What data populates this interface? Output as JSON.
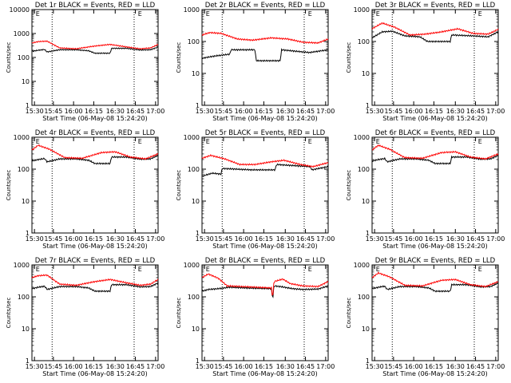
{
  "chart_data": [
    {
      "type": "line",
      "title": "Det 1r BLACK = Events, RED = LLD",
      "xlabel": "Start Time (06-May-08 15:24:20)",
      "ylabel": "Counts/sec",
      "yscale": "log",
      "ylim": [
        1,
        10000
      ],
      "x_ticks": [
        "15:30",
        "15:45",
        "16:00",
        "16:15",
        "16:30",
        "16:45",
        "17:00"
      ],
      "y_ticks": [
        "1",
        "10",
        "100",
        "1000",
        "10000"
      ],
      "markers": [
        "E",
        "E"
      ],
      "series": [
        {
          "color": "#000000",
          "shape": "black1"
        },
        {
          "color": "#ff0000",
          "shape": "red1"
        }
      ]
    },
    {
      "type": "line",
      "title": "Det 2r BLACK = Events, RED = LLD",
      "xlabel": "Start Time (06-May-08 15:24:20)",
      "ylabel": "Counts/sec",
      "yscale": "log",
      "ylim": [
        1,
        1000
      ],
      "x_ticks": [
        "15:30",
        "15:45",
        "16:00",
        "16:15",
        "16:30",
        "16:45",
        "17:00"
      ],
      "y_ticks": [
        "1",
        "10",
        "100",
        "1000"
      ],
      "markers": [
        "E",
        "E"
      ],
      "series": [
        {
          "color": "#000000",
          "shape": "black2"
        },
        {
          "color": "#ff0000",
          "shape": "red2"
        }
      ]
    },
    {
      "type": "line",
      "title": "Det 3r BLACK = Events, RED = LLD",
      "xlabel": "Start Time (06-May-08 15:24:20)",
      "ylabel": "Counts/sec",
      "yscale": "log",
      "ylim": [
        1,
        1000
      ],
      "x_ticks": [
        "15:30",
        "15:45",
        "16:00",
        "16:15",
        "16:30",
        "16:45",
        "17:00"
      ],
      "y_ticks": [
        "1",
        "10",
        "100",
        "1000"
      ],
      "markers": [
        "E",
        "E"
      ],
      "series": [
        {
          "color": "#000000",
          "shape": "black3"
        },
        {
          "color": "#ff0000",
          "shape": "red3"
        }
      ]
    },
    {
      "type": "line",
      "title": "Det 4r BLACK = Events, RED = LLD",
      "xlabel": "Start Time (06-May-08 15:24:20)",
      "ylabel": "Counts/sec",
      "yscale": "log",
      "ylim": [
        1,
        1000
      ],
      "x_ticks": [
        "15:30",
        "15:45",
        "16:00",
        "16:15",
        "16:30",
        "16:45",
        "17:00"
      ],
      "y_ticks": [
        "1",
        "10",
        "100",
        "1000"
      ],
      "markers": [
        "E",
        "E"
      ],
      "series": [
        {
          "color": "#000000",
          "shape": "black1"
        },
        {
          "color": "#ff0000",
          "shape": "red4"
        }
      ]
    },
    {
      "type": "line",
      "title": "Det 5r BLACK = Events, RED = LLD",
      "xlabel": "Start Time (06-May-08 15:24:20)",
      "ylabel": "Counts/sec",
      "yscale": "log",
      "ylim": [
        1,
        1000
      ],
      "x_ticks": [
        "15:30",
        "15:45",
        "16:00",
        "16:15",
        "16:30",
        "16:45",
        "17:00"
      ],
      "y_ticks": [
        "1",
        "10",
        "100",
        "1000"
      ],
      "markers": [
        "E",
        "E"
      ],
      "series": [
        {
          "color": "#000000",
          "shape": "black5"
        },
        {
          "color": "#ff0000",
          "shape": "red5"
        }
      ]
    },
    {
      "type": "line",
      "title": "Det 6r BLACK = Events, RED = LLD",
      "xlabel": "Start Time (06-May-08 15:24:20)",
      "ylabel": "Counts/sec",
      "yscale": "log",
      "ylim": [
        1,
        1000
      ],
      "x_ticks": [
        "15:30",
        "15:45",
        "16:00",
        "16:15",
        "16:30",
        "16:45",
        "17:00"
      ],
      "y_ticks": [
        "1",
        "10",
        "100",
        "1000"
      ],
      "markers": [
        "E",
        "E"
      ],
      "series": [
        {
          "color": "#000000",
          "shape": "black1"
        },
        {
          "color": "#ff0000",
          "shape": "red4"
        }
      ]
    },
    {
      "type": "line",
      "title": "Det 7r BLACK = Events, RED = LLD",
      "xlabel": "Start Time (06-May-08 15:24:20)",
      "ylabel": "Counts/sec",
      "yscale": "log",
      "ylim": [
        1,
        1000
      ],
      "x_ticks": [
        "15:30",
        "15:45",
        "16:00",
        "16:15",
        "16:30",
        "16:45",
        "17:00"
      ],
      "y_ticks": [
        "1",
        "10",
        "100",
        "1000"
      ],
      "markers": [
        "E",
        "E"
      ],
      "series": [
        {
          "color": "#000000",
          "shape": "black1"
        },
        {
          "color": "#ff0000",
          "shape": "red1"
        }
      ]
    },
    {
      "type": "line",
      "title": "Det 8r BLACK = Events, RED = LLD",
      "xlabel": "Start Time (06-May-08 15:24:20)",
      "ylabel": "Counts/sec",
      "yscale": "log",
      "ylim": [
        1,
        1000
      ],
      "x_ticks": [
        "15:30",
        "15:45",
        "16:00",
        "16:15",
        "16:30",
        "16:45",
        "17:00"
      ],
      "y_ticks": [
        "1",
        "10",
        "100",
        "1000"
      ],
      "markers": [
        "E",
        "E"
      ],
      "series": [
        {
          "color": "#000000",
          "shape": "black8"
        },
        {
          "color": "#ff0000",
          "shape": "red8"
        }
      ]
    },
    {
      "type": "line",
      "title": "Det 9r BLACK = Events, RED = LLD",
      "xlabel": "Start Time (06-May-08 15:24:20)",
      "ylabel": "Counts/sec",
      "yscale": "log",
      "ylim": [
        1,
        1000
      ],
      "x_ticks": [
        "15:30",
        "15:45",
        "16:00",
        "16:15",
        "16:30",
        "16:45",
        "17:00"
      ],
      "y_ticks": [
        "1",
        "10",
        "100",
        "1000"
      ],
      "markers": [
        "E",
        "E"
      ],
      "series": [
        {
          "color": "#000000",
          "shape": "black1"
        },
        {
          "color": "#ff0000",
          "shape": "red4"
        }
      ]
    }
  ],
  "profiles": {
    "red1": {
      "t": [
        0,
        0.05,
        0.12,
        0.22,
        0.35,
        0.5,
        0.62,
        0.74,
        0.86,
        0.94,
        1.0
      ],
      "v": [
        400,
        460,
        480,
        250,
        230,
        300,
        350,
        280,
        230,
        250,
        350
      ]
    },
    "black1": {
      "t": [
        0,
        0.05,
        0.1,
        0.12,
        0.22,
        0.35,
        0.45,
        0.5,
        0.62,
        0.63,
        0.75,
        0.86,
        0.94,
        1.0
      ],
      "v": [
        180,
        200,
        215,
        170,
        210,
        210,
        190,
        150,
        150,
        240,
        240,
        205,
        210,
        270
      ]
    },
    "red2": {
      "t": [
        0,
        0.06,
        0.15,
        0.28,
        0.4,
        0.55,
        0.68,
        0.8,
        0.92,
        1.0
      ],
      "v": [
        160,
        190,
        180,
        120,
        110,
        130,
        120,
        95,
        90,
        120
      ]
    },
    "black2": {
      "t": [
        0,
        0.1,
        0.22,
        0.23,
        0.42,
        0.43,
        0.62,
        0.63,
        0.85,
        1.0
      ],
      "v": [
        30,
        35,
        40,
        55,
        55,
        25,
        25,
        55,
        45,
        55
      ]
    },
    "red3": {
      "t": [
        0,
        0.08,
        0.18,
        0.3,
        0.42,
        0.55,
        0.68,
        0.8,
        0.92,
        1.0
      ],
      "v": [
        250,
        380,
        280,
        160,
        170,
        200,
        250,
        180,
        170,
        240
      ]
    },
    "black3": {
      "t": [
        0,
        0.08,
        0.16,
        0.26,
        0.38,
        0.44,
        0.62,
        0.63,
        0.8,
        0.92,
        1.0
      ],
      "v": [
        130,
        200,
        210,
        150,
        140,
        100,
        100,
        160,
        150,
        140,
        200
      ]
    },
    "red4": {
      "t": [
        0,
        0.05,
        0.14,
        0.26,
        0.4,
        0.55,
        0.66,
        0.78,
        0.9,
        1.0
      ],
      "v": [
        400,
        560,
        420,
        230,
        220,
        330,
        350,
        240,
        210,
        300
      ]
    },
    "red5": {
      "t": [
        0,
        0.07,
        0.18,
        0.3,
        0.42,
        0.55,
        0.65,
        0.78,
        0.88,
        1.0
      ],
      "v": [
        220,
        270,
        210,
        140,
        140,
        170,
        190,
        140,
        120,
        160
      ]
    },
    "black5": {
      "t": [
        0,
        0.08,
        0.15,
        0.16,
        0.28,
        0.4,
        0.58,
        0.59,
        0.72,
        0.86,
        0.87,
        1.0
      ],
      "v": [
        60,
        75,
        70,
        105,
        100,
        95,
        95,
        140,
        130,
        120,
        95,
        120
      ]
    },
    "red8": {
      "t": [
        0,
        0.05,
        0.13,
        0.2,
        0.32,
        0.55,
        0.56,
        0.57,
        0.64,
        0.7,
        0.8,
        0.92,
        1.0
      ],
      "v": [
        400,
        520,
        380,
        220,
        210,
        190,
        90,
        300,
        360,
        260,
        220,
        210,
        300
      ]
    },
    "black8": {
      "t": [
        0,
        0.05,
        0.13,
        0.22,
        0.35,
        0.55,
        0.56,
        0.57,
        0.62,
        0.72,
        0.8,
        0.92,
        1.0
      ],
      "v": [
        150,
        170,
        180,
        200,
        190,
        180,
        80,
        220,
        210,
        180,
        170,
        175,
        220
      ]
    }
  }
}
